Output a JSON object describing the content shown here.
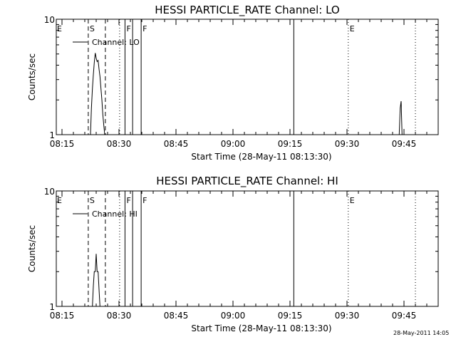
{
  "chart_data": [
    {
      "type": "line",
      "title": "HESSI PARTICLE_RATE Channel: LO",
      "xlabel": "Start Time (28-May-11 08:13:30)",
      "ylabel": "Counts/sec",
      "yscale": "log",
      "ylim": [
        1,
        10
      ],
      "xlim": [
        "08:13:30",
        "09:54:00"
      ],
      "x_ticks": [
        "08:15",
        "08:30",
        "08:45",
        "09:00",
        "09:15",
        "09:30",
        "09:45"
      ],
      "y_ticks": [
        "1",
        "10"
      ],
      "legend": {
        "label": "Channel: LO",
        "placement": "top-left"
      },
      "series": [
        {
          "name": "Channel: LO",
          "x": [
            "08:22:30",
            "08:22:45",
            "08:23:00",
            "08:23:15",
            "08:23:30",
            "08:23:45",
            "08:24:00",
            "08:24:15",
            "08:24:30",
            "08:24:45",
            "08:25:00",
            "08:25:15",
            "08:25:30",
            "08:25:45",
            "08:26:00",
            "08:26:15"
          ],
          "y": [
            1,
            1.7,
            2.5,
            3.3,
            4.2,
            5.1,
            4.6,
            4.3,
            4.4,
            3.7,
            3.2,
            2.5,
            2.0,
            1.5,
            1.2,
            1
          ],
          "x2": [
            "09:43:45",
            "09:44:00",
            "09:44:15",
            "09:44:30"
          ],
          "y2": [
            1,
            1.7,
            1.95,
            1
          ]
        }
      ],
      "vlines": [
        {
          "time": "08:21:55",
          "style": "dashed",
          "label": "S"
        },
        {
          "time": "08:26:25",
          "style": "dashed"
        },
        {
          "time": "08:30:10",
          "style": "dotted"
        },
        {
          "time": "08:31:35",
          "style": "solid",
          "label": "F"
        },
        {
          "time": "08:33:35",
          "style": "solid"
        },
        {
          "time": "08:35:50",
          "style": "solid",
          "label": "F"
        },
        {
          "time": "09:16:00",
          "style": "solid"
        },
        {
          "time": "09:30:20",
          "style": "dotted",
          "label": "E"
        },
        {
          "time": "09:48:00",
          "style": "dotted"
        }
      ],
      "edge_label": "E"
    },
    {
      "type": "line",
      "title": "HESSI PARTICLE_RATE Channel: HI",
      "xlabel": "Start Time (28-May-11 08:13:30)",
      "ylabel": "Counts/sec",
      "yscale": "log",
      "ylim": [
        1,
        10
      ],
      "xlim": [
        "08:13:30",
        "09:54:00"
      ],
      "x_ticks": [
        "08:15",
        "08:30",
        "08:45",
        "09:00",
        "09:15",
        "09:30",
        "09:45"
      ],
      "y_ticks": [
        "1",
        "10"
      ],
      "legend": {
        "label": "Channel: HI",
        "placement": "top-left"
      },
      "series": [
        {
          "name": "Channel: HI",
          "x": [
            "08:23:00",
            "08:23:15",
            "08:23:30",
            "08:23:45",
            "08:24:00",
            "08:24:15",
            "08:24:30",
            "08:24:45",
            "08:25:00"
          ],
          "y": [
            1,
            1.5,
            2.0,
            2.0,
            2.85,
            2.0,
            2.0,
            1.4,
            1
          ],
          "x2": [],
          "y2": []
        }
      ],
      "vlines": [
        {
          "time": "08:21:55",
          "style": "dashed",
          "label": "S"
        },
        {
          "time": "08:26:25",
          "style": "dashed"
        },
        {
          "time": "08:30:10",
          "style": "dotted"
        },
        {
          "time": "08:31:35",
          "style": "solid",
          "label": "F"
        },
        {
          "time": "08:33:35",
          "style": "solid"
        },
        {
          "time": "08:35:50",
          "style": "solid",
          "label": "F"
        },
        {
          "time": "09:16:00",
          "style": "solid"
        },
        {
          "time": "09:30:20",
          "style": "dotted",
          "label": "E"
        },
        {
          "time": "09:48:00",
          "style": "dotted"
        }
      ],
      "edge_label": "E"
    }
  ],
  "footer_stamp": "28-May-2011 14:05"
}
